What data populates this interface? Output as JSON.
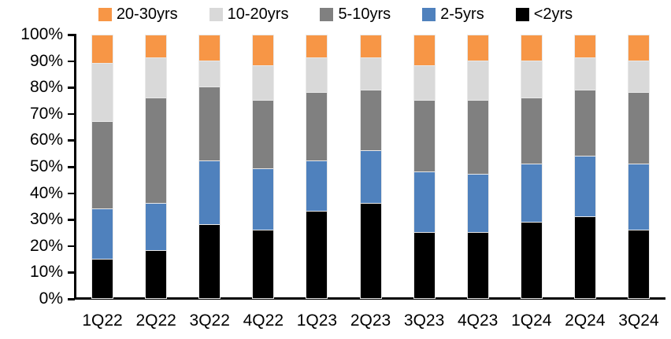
{
  "chart_data": {
    "type": "bar",
    "variant": "stacked-100-percent",
    "title": "",
    "xlabel": "",
    "ylabel": "",
    "unit": "%",
    "ylim": [
      0,
      100
    ],
    "yticks": [
      "0%",
      "10%",
      "20%",
      "30%",
      "40%",
      "50%",
      "60%",
      "70%",
      "80%",
      "90%",
      "100%"
    ],
    "grid": false,
    "legend_position": "top",
    "legend_order": [
      "20-30yrs",
      "10-20yrs",
      "5-10yrs",
      "2-5yrs",
      "<2yrs"
    ],
    "categories": [
      "1Q22",
      "2Q22",
      "3Q22",
      "4Q22",
      "1Q23",
      "2Q23",
      "3Q23",
      "4Q23",
      "1Q24",
      "2Q24",
      "3Q24"
    ],
    "series": [
      {
        "name": "<2yrs",
        "color": "#000000",
        "values": [
          15,
          18,
          28,
          26,
          33,
          36,
          25,
          25,
          29,
          31,
          26
        ]
      },
      {
        "name": "2-5yrs",
        "color": "#4F81BD",
        "values": [
          19,
          18,
          24,
          23,
          19,
          20,
          23,
          22,
          22,
          23,
          25
        ]
      },
      {
        "name": "5-10yrs",
        "color": "#808080",
        "values": [
          33,
          40,
          28,
          26,
          26,
          23,
          27,
          28,
          25,
          25,
          27
        ]
      },
      {
        "name": "10-20yrs",
        "color": "#D9D9D9",
        "values": [
          22,
          15,
          10,
          13,
          13,
          12,
          13,
          15,
          14,
          12,
          12
        ]
      },
      {
        "name": "20-30yrs",
        "color": "#F79646",
        "values": [
          11,
          9,
          10,
          12,
          9,
          9,
          12,
          10,
          10,
          9,
          10
        ]
      }
    ],
    "stack_order": "first-series-at-bottom",
    "axis_color": "#000000",
    "text_color": "#000000",
    "background_color": "#FFFFFF"
  }
}
